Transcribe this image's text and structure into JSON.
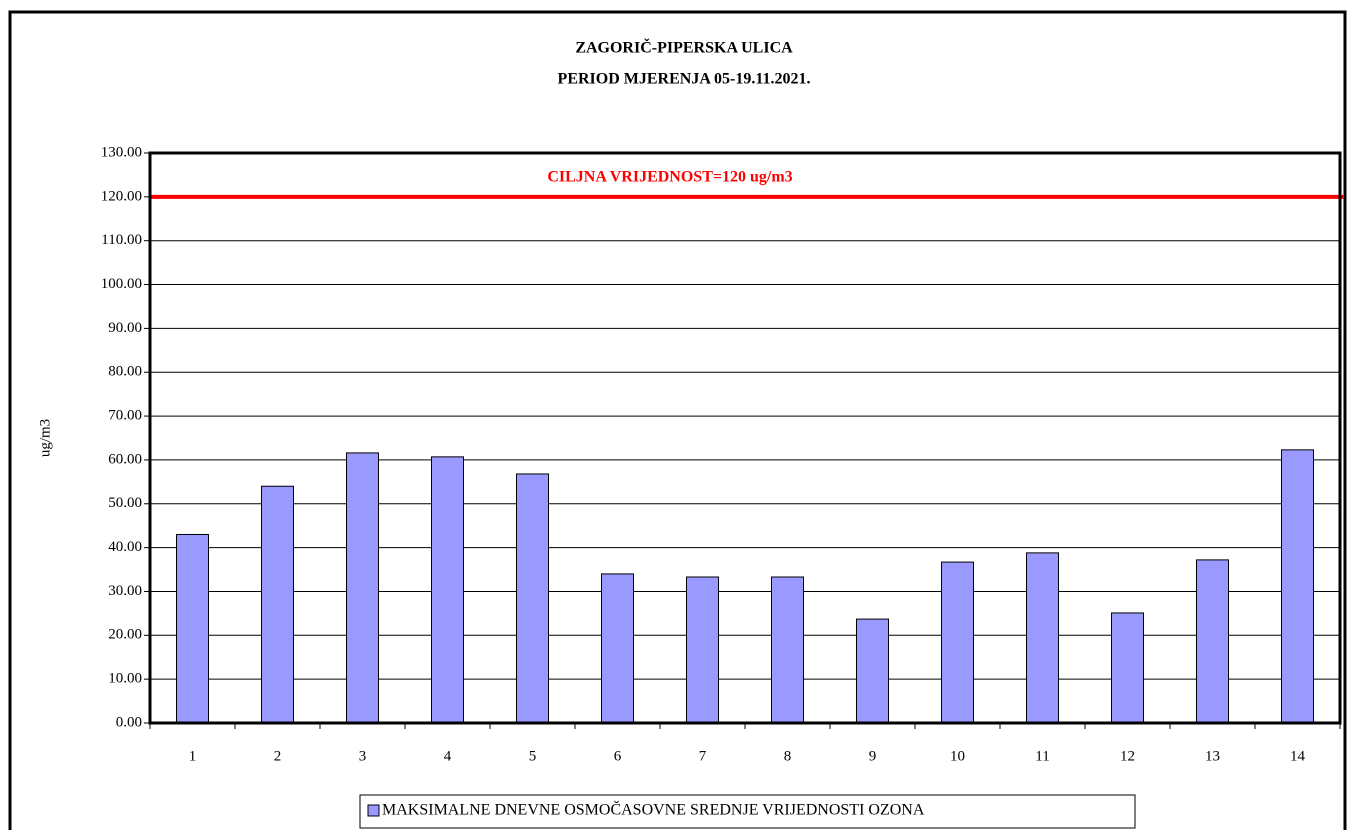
{
  "chart_data": {
    "type": "bar",
    "title": "ZAGORIČ-PIPERSKA ULICA",
    "subtitle": "PERIOD MJERENJA 05-19.11.2021.",
    "y_label": "ug/m3",
    "categories": [
      "1",
      "2",
      "3",
      "4",
      "5",
      "6",
      "7",
      "8",
      "9",
      "10",
      "11",
      "12",
      "13",
      "14"
    ],
    "series": [
      {
        "name": "MAKSIMALNE DNEVNE OSMOČASOVNE SREDNJE VRIJEDNOSTI OZONA",
        "color": "#9999ff",
        "values": [
          43,
          54,
          61.6,
          60.7,
          56.8,
          34,
          33.3,
          33.3,
          23.7,
          36.7,
          38.8,
          25.1,
          37.2,
          62.3
        ]
      }
    ],
    "reference_line": {
      "value": 120,
      "label": "CILJNA VRIJEDNOST=120 ug/m3",
      "color": "#ff0000"
    },
    "ylim": [
      0,
      130
    ],
    "yticks": [
      {
        "value": 0,
        "label": "0.00"
      },
      {
        "value": 10,
        "label": "10.00"
      },
      {
        "value": 20,
        "label": "20.00"
      },
      {
        "value": 30,
        "label": "30.00"
      },
      {
        "value": 40,
        "label": "40.00"
      },
      {
        "value": 50,
        "label": "50.00"
      },
      {
        "value": 60,
        "label": "60.00"
      },
      {
        "value": 70,
        "label": "70.00"
      },
      {
        "value": 80,
        "label": "80.00"
      },
      {
        "value": 90,
        "label": "90.00"
      },
      {
        "value": 100,
        "label": "100.00"
      },
      {
        "value": 110,
        "label": "110.00"
      },
      {
        "value": 120,
        "label": "120.00"
      },
      {
        "value": 130,
        "label": "130.00"
      }
    ],
    "grid": true,
    "legend": "bottom"
  }
}
